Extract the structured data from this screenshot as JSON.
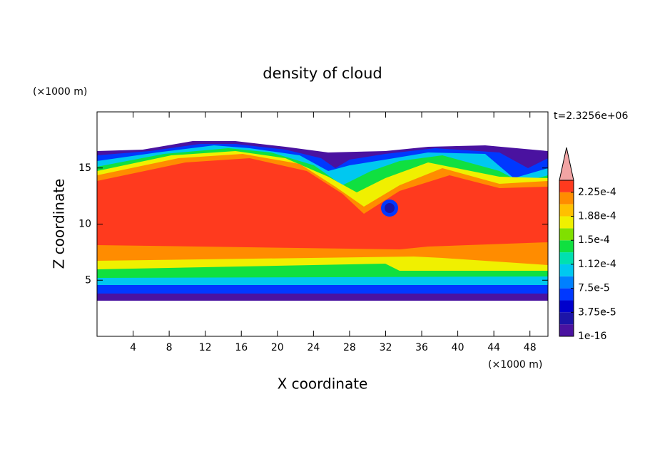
{
  "chart_data": {
    "type": "contour",
    "title": "density of cloud",
    "x_label": "X coordinate",
    "y_label": "Z coordinate",
    "x_unit": "(×1000 m)",
    "y_unit": "(×1000 m)",
    "annotation": "t=2.3256e+06",
    "xlim": [
      0,
      50
    ],
    "ylim": [
      0,
      20
    ],
    "xticks": [
      4,
      8,
      12,
      16,
      20,
      24,
      28,
      32,
      36,
      40,
      44,
      48
    ],
    "yticks": [
      5,
      10,
      15
    ],
    "colorbar": {
      "clim": [
        1e-16,
        0.00024375
      ],
      "ticks": [
        1e-16,
        {
          "value": 3.75e-05,
          "label": "3.75e-5"
        },
        {
          "value": 7.5e-05,
          "label": "7.5e-5"
        },
        {
          "value": 0.0001125,
          "label": "1.12e-4"
        },
        {
          "value": 0.00015,
          "label": "1.5e-4"
        },
        {
          "value": 0.0001875,
          "label": "1.88e-4"
        },
        {
          "value": 0.000225,
          "label": "2.25e-4"
        }
      ],
      "colors": [
        "#4a12a0",
        "#1c14a8",
        "#0000cc",
        "#0038ff",
        "#0080ff",
        "#00c8f0",
        "#00e0b0",
        "#10e040",
        "#80e000",
        "#f0f000",
        "#ffc000",
        "#ff8c00",
        "#ff3a1e"
      ],
      "extend_color": "#f2a4a4"
    }
  }
}
